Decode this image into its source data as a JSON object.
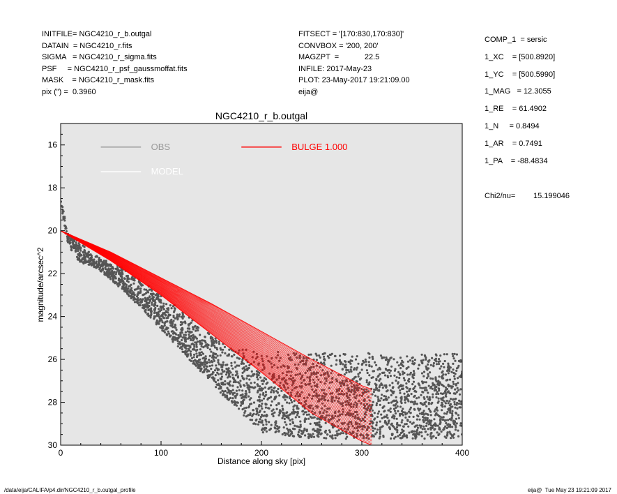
{
  "header_left": [
    "INITFILE= NGC4210_r_b.outgal",
    "DATAIN  = NGC4210_r.fits",
    "SIGMA   = NGC4210_r_sigma.fits",
    "PSF     = NGC4210_r_psf_gaussmoffat.fits",
    "MASK    = NGC4210_r_mask.fits",
    "pix (\") =  0.3960"
  ],
  "header_mid": [
    "FITSECT = '[170:830,170:830]'",
    "CONVBOX = '200, 200'",
    "MAGZPT  =            22.5",
    "INFILE: 2017-May-23",
    "PLOT: 23-May-2017 19:21:09.00",
    "eija@"
  ],
  "header_right": [
    "COMP_1  = sersic",
    "1_XC    = [500.8920]",
    "1_YC    = [500.5990]",
    "1_MAG   = 12.3055",
    "1_RE    = 61.4902",
    "1_N     = 0.8494",
    "1_AR    = 0.7491",
    "1_PA    = -88.4834"
  ],
  "chi2": {
    "label": "Chi2/nu=",
    "value": "15.199046"
  },
  "footer_left": "/data/eija/CALIFA/p4.dir/NGC4210_r_b.outgal_profile",
  "footer_right": "eija@  Tue May 23 19:21:09 2017",
  "colors": {
    "background": "#e6e6e6",
    "obs": "#555555",
    "obs_legend": "#999999",
    "model": "#ffffff",
    "bulge": "#ff0000"
  },
  "chart_data": {
    "type": "scatter",
    "title": "NGC4210_r_b.outgal",
    "xlabel": "Distance along sky [pix]",
    "ylabel": "magnitude/arcsec^2",
    "xlim": [
      0,
      400
    ],
    "ylim": [
      30,
      15
    ],
    "y_inverted": true,
    "xticks": [
      0,
      100,
      200,
      300,
      400
    ],
    "yticks": [
      16,
      18,
      20,
      22,
      24,
      26,
      28,
      30
    ],
    "legend": [
      {
        "name": "OBS",
        "color": "#999999"
      },
      {
        "name": "MODEL",
        "color": "#ffffff"
      },
      {
        "name": "BULGE  1.000",
        "color": "#ff0000"
      }
    ],
    "series": [
      {
        "name": "OBS",
        "kind": "scatter-band",
        "x": [
          0,
          5,
          10,
          20,
          30,
          40,
          60,
          80,
          100,
          120,
          140,
          160,
          180,
          200,
          250,
          300,
          350,
          400
        ],
        "y_low": [
          18.3,
          19.6,
          20.2,
          20.6,
          21.0,
          21.3,
          21.7,
          22.3,
          23.0,
          23.7,
          24.5,
          25.2,
          25.5,
          25.6,
          25.7,
          25.7,
          25.7,
          25.7
        ],
        "y_high": [
          18.8,
          20.2,
          21.0,
          21.5,
          21.6,
          21.9,
          22.7,
          23.6,
          24.6,
          25.6,
          26.6,
          27.6,
          28.5,
          29.4,
          29.7,
          29.7,
          29.7,
          29.7
        ]
      },
      {
        "name": "BULGE  1.000",
        "kind": "model-band",
        "x": [
          0,
          50,
          100,
          150,
          200,
          250,
          307
        ],
        "y_low": [
          20.0,
          21.0,
          22.2,
          23.4,
          24.7,
          26.0,
          27.4
        ],
        "y_high": [
          20.0,
          21.4,
          23.0,
          24.8,
          26.6,
          28.5,
          30.0
        ]
      }
    ]
  }
}
